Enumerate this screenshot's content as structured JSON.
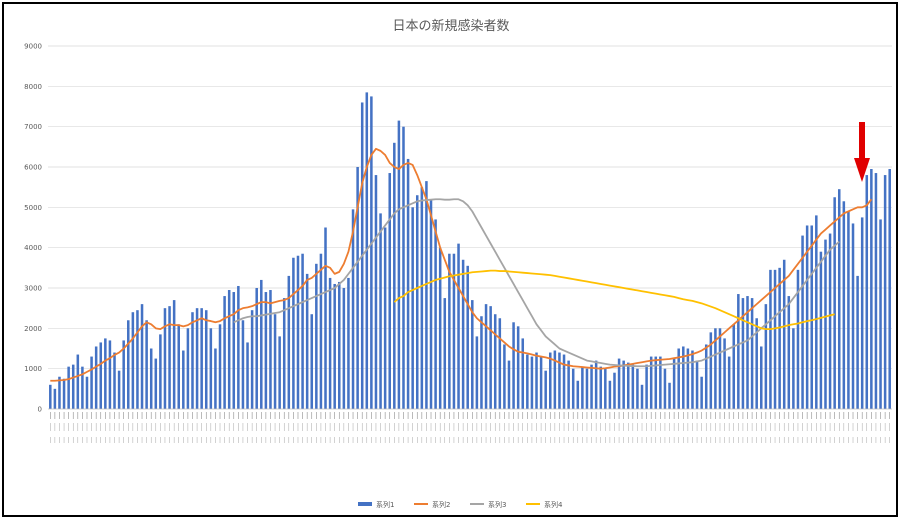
{
  "chart_data": {
    "type": "bar",
    "title": "日本の新規感染者数",
    "ylim": [
      0,
      9000
    ],
    "yticks": [
      0,
      1000,
      2000,
      3000,
      4000,
      5000,
      6000,
      7000,
      8000,
      9000
    ],
    "grid": true,
    "legend_position": "bottom",
    "colors": {
      "series1": "#4472c4",
      "series2": "#ed7d31",
      "series3": "#a5a5a5",
      "series4": "#ffc000",
      "arrow": "#e00000"
    },
    "series": [
      {
        "name": "系列1",
        "kind": "bar",
        "values": [
          600,
          500,
          800,
          750,
          1050,
          1100,
          1350,
          1050,
          800,
          1300,
          1550,
          1650,
          1750,
          1700,
          1400,
          950,
          1700,
          2200,
          2400,
          2450,
          2600,
          2200,
          1500,
          1250,
          1850,
          2500,
          2550,
          2700,
          2100,
          1450,
          2000,
          2400,
          2500,
          2500,
          2450,
          2000,
          1500,
          2100,
          2800,
          2950,
          2900,
          3050,
          2200,
          1650,
          2450,
          3000,
          3200,
          2900,
          2950,
          2350,
          1800,
          2750,
          3300,
          3750,
          3800,
          3850,
          3350,
          2350,
          3600,
          3850,
          4500,
          3250,
          3100,
          3150,
          3000,
          3250,
          4950,
          6000,
          7600,
          7850,
          7750,
          5800,
          4850,
          4500,
          5850,
          6600,
          7150,
          7000,
          6200,
          5000,
          5300,
          5500,
          5650,
          5200,
          4700,
          4000,
          2750,
          3850,
          3850,
          4100,
          3700,
          3550,
          2700,
          1800,
          2300,
          2600,
          2550,
          2350,
          2250,
          1600,
          1200,
          2150,
          2050,
          1750,
          1350,
          1300,
          1400,
          1300,
          950,
          1400,
          1450,
          1400,
          1350,
          1200,
          1000,
          700,
          1050,
          1000,
          1100,
          1200,
          1050,
          1000,
          700,
          900,
          1250,
          1200,
          1150,
          1100,
          1000,
          600,
          1100,
          1300,
          1300,
          1300,
          1000,
          650,
          1250,
          1500,
          1550,
          1500,
          1450,
          1200,
          800,
          1600,
          1900,
          2000,
          2000,
          1750,
          1300,
          2100,
          2850,
          2750,
          2800,
          2750,
          2250,
          1550,
          2600,
          3450,
          3450,
          3500,
          3700,
          2800,
          2000,
          3450,
          4300,
          4550,
          4550,
          4800,
          3900,
          4200,
          4350,
          5250,
          5450,
          5150,
          4900,
          4600,
          3300,
          4750,
          5800,
          5950,
          5850,
          4700,
          5800,
          5950
        ]
      },
      {
        "name": "系列2",
        "kind": "line",
        "values": [
          700,
          700,
          710,
          720,
          740,
          780,
          820,
          860,
          920,
          980,
          1050,
          1120,
          1200,
          1260,
          1340,
          1400,
          1500,
          1620,
          1750,
          1900,
          2050,
          2150,
          2100,
          2000,
          1980,
          2050,
          2100,
          2080,
          2080,
          2050,
          2080,
          2150,
          2200,
          2250,
          2200,
          2180,
          2150,
          2180,
          2250,
          2300,
          2350,
          2450,
          2500,
          2520,
          2550,
          2600,
          2650,
          2650,
          2620,
          2650,
          2680,
          2700,
          2750,
          2850,
          2950,
          3050,
          3200,
          3250,
          3350,
          3450,
          3550,
          3500,
          3350,
          3400,
          3600,
          3900,
          4400,
          5000,
          5600,
          6000,
          6300,
          6450,
          6400,
          6300,
          6100,
          6000,
          5950,
          6050,
          6100,
          6050,
          5800,
          5500,
          5200,
          4800,
          4400,
          4000,
          3700,
          3400,
          3200,
          3000,
          2800,
          2600,
          2400,
          2250,
          2150,
          2050,
          1950,
          1850,
          1750,
          1650,
          1550,
          1480,
          1420,
          1400,
          1380,
          1350,
          1320,
          1300,
          1280,
          1250,
          1200,
          1150,
          1100,
          1080,
          1060,
          1050,
          1040,
          1030,
          1020,
          1010,
          1000,
          1010,
          1030,
          1050,
          1060,
          1080,
          1100,
          1120,
          1140,
          1160,
          1180,
          1200,
          1210,
          1220,
          1230,
          1240,
          1260,
          1280,
          1300,
          1330,
          1360,
          1400,
          1450,
          1520,
          1600,
          1700,
          1800,
          1900,
          2000,
          2100,
          2200,
          2300,
          2400,
          2500,
          2600,
          2700,
          2800,
          2900,
          3000,
          3100,
          3200,
          3300,
          3450,
          3600,
          3750,
          3900,
          4050,
          4200,
          4350,
          4450,
          4550,
          4650,
          4750,
          4850,
          4900,
          4950,
          5000,
          5000,
          5050,
          5200
        ]
      },
      {
        "name": "系列3",
        "kind": "line",
        "values": [
          null,
          null,
          null,
          null,
          null,
          null,
          null,
          null,
          null,
          null,
          null,
          null,
          null,
          null,
          null,
          null,
          null,
          null,
          null,
          null,
          null,
          null,
          null,
          null,
          null,
          null,
          null,
          null,
          null,
          null,
          null,
          null,
          null,
          null,
          null,
          null,
          null,
          null,
          null,
          null,
          2150,
          2200,
          2250,
          2280,
          2300,
          2300,
          2320,
          2340,
          2360,
          2380,
          2400,
          2450,
          2500,
          2550,
          2600,
          2650,
          2700,
          2750,
          2800,
          2850,
          2900,
          2950,
          3000,
          3100,
          3200,
          3350,
          3500,
          3650,
          3800,
          3950,
          4100,
          4250,
          4400,
          4550,
          4700,
          4850,
          4950,
          5000,
          5050,
          5100,
          5150,
          5170,
          5180,
          5190,
          5200,
          5200,
          5190,
          5190,
          5200,
          5200,
          5150,
          5050,
          4900,
          4700,
          4500,
          4300,
          4100,
          3900,
          3700,
          3500,
          3300,
          3100,
          2900,
          2700,
          2500,
          2300,
          2100,
          1950,
          1800,
          1700,
          1600,
          1500,
          1450,
          1400,
          1350,
          1300,
          1250,
          1200,
          1180,
          1160,
          1140,
          1120,
          1100,
          1090,
          1080,
          1075,
          1070,
          1065,
          1060,
          1060,
          1060,
          1070,
          1080,
          1090,
          1100,
          1110,
          1120,
          1130,
          1140,
          1150,
          1160,
          1180,
          1200,
          1250,
          1300,
          1350,
          1400,
          1450,
          1500,
          1550,
          1600,
          1650,
          1700,
          1800,
          1900,
          2000,
          2100,
          2200,
          2300,
          2400,
          2500,
          2600,
          2750,
          2900,
          3050,
          3200,
          3350,
          3500,
          3650,
          3800,
          3950,
          4050,
          4150
        ]
      },
      {
        "name": "系列4",
        "kind": "line",
        "values": [
          null,
          null,
          null,
          null,
          null,
          null,
          null,
          null,
          null,
          null,
          null,
          null,
          null,
          null,
          null,
          null,
          null,
          null,
          null,
          null,
          null,
          null,
          null,
          null,
          null,
          null,
          null,
          null,
          null,
          null,
          null,
          null,
          null,
          null,
          null,
          null,
          null,
          null,
          null,
          null,
          null,
          null,
          null,
          null,
          null,
          null,
          null,
          null,
          null,
          null,
          null,
          null,
          null,
          null,
          null,
          null,
          null,
          null,
          null,
          null,
          null,
          null,
          null,
          null,
          null,
          null,
          null,
          null,
          null,
          null,
          null,
          null,
          null,
          null,
          null,
          2650,
          2750,
          2800,
          2900,
          2950,
          3000,
          3050,
          3100,
          3150,
          3200,
          3230,
          3260,
          3290,
          3310,
          3330,
          3350,
          3370,
          3390,
          3400,
          3410,
          3420,
          3430,
          3430,
          3420,
          3420,
          3410,
          3400,
          3390,
          3380,
          3370,
          3360,
          3350,
          3340,
          3330,
          3320,
          3300,
          3280,
          3260,
          3240,
          3220,
          3200,
          3180,
          3160,
          3140,
          3120,
          3100,
          3080,
          3060,
          3040,
          3020,
          3000,
          2980,
          2960,
          2940,
          2920,
          2900,
          2880,
          2860,
          2840,
          2820,
          2800,
          2780,
          2750,
          2720,
          2700,
          2680,
          2650,
          2620,
          2580,
          2540,
          2500,
          2450,
          2400,
          2350,
          2300,
          2250,
          2200,
          2150,
          2100,
          2050,
          2000,
          1980,
          1980,
          2000,
          2020,
          2050,
          2080,
          2100,
          2120,
          2150,
          2180,
          2200,
          2230,
          2260,
          2290,
          2320,
          2350
        ]
      }
    ]
  }
}
